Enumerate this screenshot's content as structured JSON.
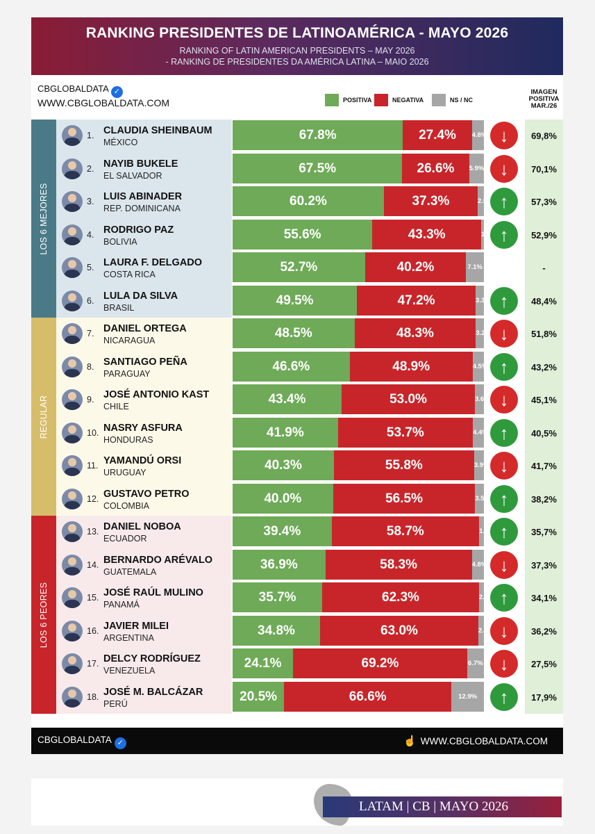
{
  "header": {
    "title": "RANKING PRESIDENTES DE LATINOAMÉRICA - MAYO 2026",
    "subtitle_en": "RANKING OF LATIN AMERICAN PRESIDENTS – MAY 2026",
    "subtitle_pt": "- RANKING DE PRESIDENTES DA AMÉRICA LATINA – MAIO 2026"
  },
  "brand": {
    "name": "CBGLOBALDATA",
    "verified_icon": "verified-check-icon",
    "website": "WWW.CBGLOBALDATA.COM"
  },
  "legend": {
    "positive": "POSITIVA",
    "negative": "NEGATIVA",
    "nsnc": "NS / NC"
  },
  "prev_header": {
    "line1": "IMAGEN",
    "line2": "POSITIVA",
    "line3": "MAR./26"
  },
  "groups": [
    {
      "label": "LOS 6 MEJORES",
      "color": "#4a7a87",
      "row_bg": "#dbe6ec"
    },
    {
      "label": "REGULAR",
      "color": "#d6bd6a",
      "row_bg": "#fdf9e9"
    },
    {
      "label": "LOS 6 PEORES",
      "color": "#c8252a",
      "row_bg": "#f8eaea"
    }
  ],
  "colors": {
    "positive": "#6eaa57",
    "negative": "#c8252a",
    "nsnc": "#a6a6a6",
    "up": "#2e9a3c",
    "down": "#d42a2a"
  },
  "chart_data": {
    "type": "bar",
    "stacked": true,
    "orientation": "horizontal",
    "title": "RANKING PRESIDENTES DE LATINOAMÉRICA - MAYO 2026",
    "categories": [
      "CLAUDIA SHEINBAUM",
      "NAYIB BUKELE",
      "LUIS ABINADER",
      "RODRIGO PAZ",
      "LAURA F. DELGADO",
      "LULA DA SILVA",
      "DANIEL ORTEGA",
      "SANTIAGO PEÑA",
      "JOSÉ ANTONIO KAST",
      "NASRY ASFURA",
      "YAMANDÚ ORSI",
      "GUSTAVO PETRO",
      "DANIEL NOBOA",
      "BERNARDO ARÉVALO",
      "JOSÉ RAÚL MULINO",
      "JAVIER MILEI",
      "DELCY RODRÍGUEZ",
      "JOSÉ M. BALCÁZAR"
    ],
    "series": [
      {
        "name": "POSITIVA",
        "values": [
          67.8,
          67.5,
          60.2,
          55.6,
          52.7,
          49.5,
          48.5,
          46.6,
          43.4,
          41.9,
          40.3,
          40.0,
          39.4,
          36.9,
          35.7,
          34.8,
          24.1,
          20.5
        ]
      },
      {
        "name": "NEGATIVA",
        "values": [
          27.4,
          26.6,
          37.3,
          43.3,
          40.2,
          47.2,
          48.3,
          48.9,
          53.0,
          53.7,
          55.8,
          56.5,
          58.7,
          58.3,
          62.3,
          63.0,
          69.2,
          66.6
        ]
      },
      {
        "name": "NS / NC",
        "values": [
          4.8,
          5.9,
          2.5,
          1.1,
          7.1,
          3.3,
          3.2,
          4.5,
          3.6,
          4.4,
          3.9,
          3.5,
          1.9,
          4.8,
          2.0,
          2.2,
          6.7,
          12.9
        ]
      }
    ],
    "xlim": [
      0,
      100
    ],
    "rows": [
      {
        "rank": "1.",
        "name": "CLAUDIA SHEINBAUM",
        "country": "MÉXICO",
        "pos": 67.8,
        "neg": 27.4,
        "ns": 4.8,
        "pos_label": "67.8%",
        "neg_label": "27.4%",
        "ns_label": "4.8%",
        "trend": "down",
        "prev": "69,8%",
        "group": 0
      },
      {
        "rank": "2.",
        "name": "NAYIB BUKELE",
        "country": "EL SALVADOR",
        "pos": 67.5,
        "neg": 26.6,
        "ns": 5.9,
        "pos_label": "67.5%",
        "neg_label": "26.6%",
        "ns_label": "5.9%",
        "trend": "down",
        "prev": "70,1%",
        "group": 0
      },
      {
        "rank": "3.",
        "name": "LUIS ABINADER",
        "country": "REP. DOMINICANA",
        "pos": 60.2,
        "neg": 37.3,
        "ns": 2.5,
        "pos_label": "60.2%",
        "neg_label": "37.3%",
        "ns_label": "2.5%",
        "trend": "up",
        "prev": "57,3%",
        "group": 0
      },
      {
        "rank": "4.",
        "name": "RODRIGO PAZ",
        "country": "BOLIVIA",
        "pos": 55.6,
        "neg": 43.3,
        "ns": 1.1,
        "pos_label": "55.6%",
        "neg_label": "43.3%",
        "ns_label": "1.1%",
        "trend": "up",
        "prev": "52,9%",
        "group": 0
      },
      {
        "rank": "5.",
        "name": "LAURA F. DELGADO",
        "country": "COSTA RICA",
        "pos": 52.7,
        "neg": 40.2,
        "ns": 7.1,
        "pos_label": "52.7%",
        "neg_label": "40.2%",
        "ns_label": "7.1%",
        "trend": "",
        "prev": "-",
        "group": 0
      },
      {
        "rank": "6.",
        "name": "LULA DA SILVA",
        "country": "BRASIL",
        "pos": 49.5,
        "neg": 47.2,
        "ns": 3.3,
        "pos_label": "49.5%",
        "neg_label": "47.2%",
        "ns_label": "3.3%",
        "trend": "up",
        "prev": "48,4%",
        "group": 0
      },
      {
        "rank": "7.",
        "name": "DANIEL ORTEGA",
        "country": "NICARAGUA",
        "pos": 48.5,
        "neg": 48.3,
        "ns": 3.2,
        "pos_label": "48.5%",
        "neg_label": "48.3%",
        "ns_label": "3.2%",
        "trend": "down",
        "prev": "51,8%",
        "group": 1
      },
      {
        "rank": "8.",
        "name": "SANTIAGO PEÑA",
        "country": "PARAGUAY",
        "pos": 46.6,
        "neg": 48.9,
        "ns": 4.5,
        "pos_label": "46.6%",
        "neg_label": "48.9%",
        "ns_label": "4.5%",
        "trend": "up",
        "prev": "43,2%",
        "group": 1
      },
      {
        "rank": "9.",
        "name": "JOSÉ ANTONIO KAST",
        "country": "CHILE",
        "pos": 43.4,
        "neg": 53.0,
        "ns": 3.6,
        "pos_label": "43.4%",
        "neg_label": "53.0%",
        "ns_label": "3.6%",
        "trend": "down",
        "prev": "45,1%",
        "group": 1
      },
      {
        "rank": "10.",
        "name": "NASRY ASFURA",
        "country": "HONDURAS",
        "pos": 41.9,
        "neg": 53.7,
        "ns": 4.4,
        "pos_label": "41.9%",
        "neg_label": "53.7%",
        "ns_label": "4.4%",
        "trend": "up",
        "prev": "40,5%",
        "group": 1
      },
      {
        "rank": "11.",
        "name": "YAMANDÚ ORSI",
        "country": "URUGUAY",
        "pos": 40.3,
        "neg": 55.8,
        "ns": 3.9,
        "pos_label": "40.3%",
        "neg_label": "55.8%",
        "ns_label": "3.9%",
        "trend": "down",
        "prev": "41,7%",
        "group": 1
      },
      {
        "rank": "12.",
        "name": "GUSTAVO PETRO",
        "country": "COLOMBIA",
        "pos": 40.0,
        "neg": 56.5,
        "ns": 3.5,
        "pos_label": "40.0%",
        "neg_label": "56.5%",
        "ns_label": "3.5%",
        "trend": "up",
        "prev": "38,2%",
        "group": 1
      },
      {
        "rank": "13.",
        "name": "DANIEL NOBOA",
        "country": "ECUADOR",
        "pos": 39.4,
        "neg": 58.7,
        "ns": 1.9,
        "pos_label": "39.4%",
        "neg_label": "58.7%",
        "ns_label": "1.9%",
        "trend": "up",
        "prev": "35,7%",
        "group": 2
      },
      {
        "rank": "14.",
        "name": "BERNARDO ARÉVALO",
        "country": "GUATEMALA",
        "pos": 36.9,
        "neg": 58.3,
        "ns": 4.8,
        "pos_label": "36.9%",
        "neg_label": "58.3%",
        "ns_label": "4.8%",
        "trend": "down",
        "prev": "37,3%",
        "group": 2
      },
      {
        "rank": "15.",
        "name": "JOSÉ RAÚL MULINO",
        "country": "PANAMÁ",
        "pos": 35.7,
        "neg": 62.3,
        "ns": 2.0,
        "pos_label": "35.7%",
        "neg_label": "62.3%",
        "ns_label": "2.0%",
        "trend": "up",
        "prev": "34,1%",
        "group": 2
      },
      {
        "rank": "16.",
        "name": "JAVIER MILEI",
        "country": "ARGENTINA",
        "pos": 34.8,
        "neg": 63.0,
        "ns": 2.2,
        "pos_label": "34.8%",
        "neg_label": "63.0%",
        "ns_label": "2.2%",
        "trend": "down",
        "prev": "36,2%",
        "group": 2
      },
      {
        "rank": "17.",
        "name": "DELCY RODRÍGUEZ",
        "country": "VENEZUELA",
        "pos": 24.1,
        "neg": 69.2,
        "ns": 6.7,
        "pos_label": "24.1%",
        "neg_label": "69.2%",
        "ns_label": "6.7%",
        "trend": "down",
        "prev": "27,5%",
        "group": 2
      },
      {
        "rank": "18.",
        "name": "JOSÉ M. BALCÁZAR",
        "country": "PERÚ",
        "pos": 20.5,
        "neg": 66.6,
        "ns": 12.9,
        "pos_label": "20.5%",
        "neg_label": "66.6%",
        "ns_label": "12.9%",
        "trend": "up",
        "prev": "17,9%",
        "group": 2
      }
    ]
  },
  "footer": {
    "brand": "CBGLOBALDATA",
    "website": "WWW.CBGLOBALDATA.COM",
    "pointer_icon": "hand-pointer-icon"
  },
  "bottom_banner": {
    "text": "LATAM | CB | MAYO 2026",
    "map_icon": "latin-america-map-icon"
  }
}
